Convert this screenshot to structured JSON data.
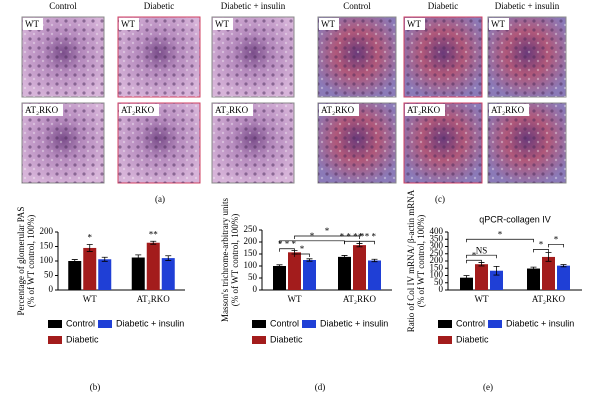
{
  "panels": [
    {
      "label": "(a)",
      "columns": [
        "Control",
        "Diabetic",
        "Diabetic + insulin"
      ],
      "rows": [
        "WT",
        "AT₂RKO"
      ]
    },
    {
      "label": "(c)",
      "columns": [
        "Control",
        "Diabetic",
        "Diabetic + insulin"
      ],
      "rows": [
        "WT",
        "AT₂RKO"
      ]
    }
  ],
  "chart_data": [
    {
      "type": "bar",
      "panel_label": "(b)",
      "y_label": [
        "Percentage of glomerular PAS",
        "(% of WT control, 100%)"
      ],
      "categories": [
        "WT",
        "AT₂RKO"
      ],
      "series": [
        {
          "name": "Control",
          "color": "#000000",
          "values": [
            100,
            112
          ],
          "errors": [
            5,
            9
          ]
        },
        {
          "name": "Diabetic",
          "color": "#a31c1c",
          "values": [
            145,
            163
          ],
          "errors": [
            12,
            5
          ]
        },
        {
          "name": "Diabetic + insulin",
          "color": "#1f3fd6",
          "values": [
            106,
            110
          ],
          "errors": [
            7,
            8
          ]
        }
      ],
      "ylim": [
        0,
        200
      ],
      "yticks": [
        0,
        50,
        100,
        150,
        200
      ],
      "annotations": [
        "*",
        "**"
      ]
    },
    {
      "type": "bar",
      "panel_label": "(d)",
      "y_label": [
        "Masson's trichrome-arbitrary units",
        "(% of WT control, 100%)"
      ],
      "categories": [
        "WT",
        "AT₂RKO"
      ],
      "series": [
        {
          "name": "Control",
          "color": "#000000",
          "values": [
            100,
            138
          ],
          "errors": [
            5,
            6
          ]
        },
        {
          "name": "Diabetic",
          "color": "#a31c1c",
          "values": [
            157,
            187
          ],
          "errors": [
            7,
            7
          ]
        },
        {
          "name": "Diabetic + insulin",
          "color": "#1f3fd6",
          "values": [
            125,
            123
          ],
          "errors": [
            5,
            5
          ]
        }
      ],
      "ylim": [
        0,
        250
      ],
      "yticks": [
        0,
        50,
        100,
        150,
        200,
        250
      ],
      "annotations": [
        "* * *",
        "*",
        "*",
        "*",
        "* * * *",
        "* * *"
      ]
    },
    {
      "type": "bar",
      "panel_label": "(e)",
      "title": "qPCR-collagen IV",
      "y_label": [
        "Ratio of Col IV mRNA/ β-actin mRNA",
        "(% of WT control, 100%)"
      ],
      "categories": [
        "WT",
        "AT₂RKO"
      ],
      "series": [
        {
          "name": "Control",
          "color": "#000000",
          "values": [
            85,
            148
          ],
          "errors": [
            15,
            10
          ]
        },
        {
          "name": "Diabetic",
          "color": "#a31c1c",
          "values": [
            178,
            228
          ],
          "errors": [
            12,
            30
          ]
        },
        {
          "name": "Diabetic + insulin",
          "color": "#1f3fd6",
          "values": [
            133,
            168
          ],
          "errors": [
            30,
            8
          ]
        }
      ],
      "ylim": [
        0,
        400
      ],
      "yticks": [
        0,
        50,
        100,
        150,
        200,
        250,
        300,
        350,
        400
      ],
      "annotations": [
        "*",
        "NS",
        "*",
        "*",
        "*"
      ]
    }
  ]
}
